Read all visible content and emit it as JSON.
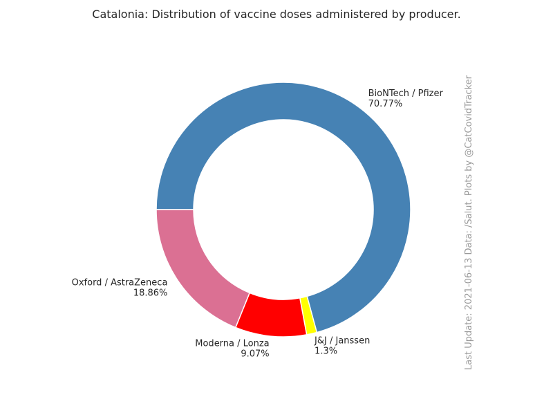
{
  "chart_data": {
    "type": "pie",
    "style": "donut",
    "title": "Catalonia: Distribution of vaccine doses administered by producer.",
    "slices": [
      {
        "name": "BioNTech / Pfizer",
        "value": 70.77,
        "label": "70.77%",
        "color": "#4682b4"
      },
      {
        "name": "J&J / Janssen",
        "value": 1.3,
        "label": "1.3%",
        "color": "#ffff00"
      },
      {
        "name": "Moderna / Lonza",
        "value": 9.07,
        "label": "9.07%",
        "color": "#ff0000"
      },
      {
        "name": "Oxford / AstraZeneca",
        "value": 18.86,
        "label": "18.86%",
        "color": "#db7093"
      }
    ],
    "start_angle_deg": 180,
    "direction": "clockwise",
    "legend": "none",
    "side_note": "Last Update: 2021-06-13 Data: /Salut.    Plots by @CatCovidTracker"
  }
}
